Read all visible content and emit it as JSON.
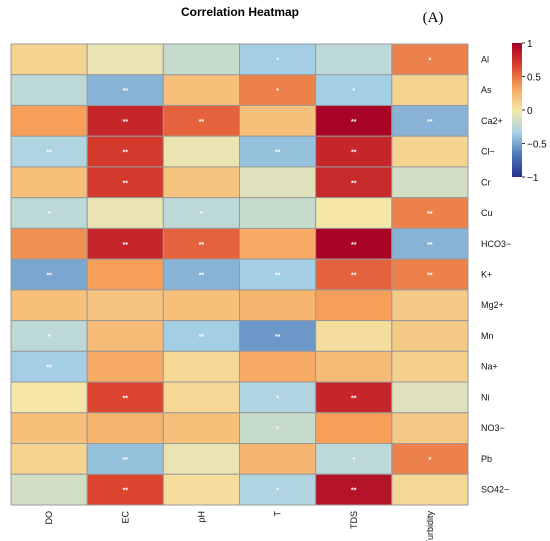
{
  "chart_data": {
    "type": "heatmap",
    "title": "Correlation Heatmap",
    "panel_label": "(A)",
    "columns": [
      "DO",
      "EC",
      "pH",
      "T",
      "TDS",
      "Turbidity"
    ],
    "rows": [
      "Al",
      "As",
      "Ca2+",
      "Cl−",
      "Cr",
      "Cu",
      "HCO3−",
      "K+",
      "Mg2+",
      "Mn",
      "Na+",
      "Ni",
      "NO3−",
      "Pb",
      "SO42−"
    ],
    "values": [
      [
        0.1,
        -0.05,
        -0.2,
        -0.35,
        -0.25,
        0.45
      ],
      [
        -0.25,
        -0.45,
        0.2,
        0.45,
        -0.35,
        0.1
      ],
      [
        0.35,
        0.8,
        0.55,
        0.2,
        0.98,
        -0.45
      ],
      [
        -0.3,
        0.7,
        -0.05,
        -0.4,
        0.8,
        0.1
      ],
      [
        0.2,
        0.7,
        0.18,
        -0.1,
        0.78,
        -0.15
      ],
      [
        -0.25,
        -0.05,
        -0.25,
        -0.2,
        0.0,
        0.45
      ],
      [
        0.4,
        0.8,
        0.55,
        0.3,
        0.98,
        -0.45
      ],
      [
        -0.5,
        0.35,
        -0.45,
        -0.35,
        0.55,
        0.45
      ],
      [
        0.2,
        0.18,
        0.2,
        0.25,
        0.35,
        0.15
      ],
      [
        -0.25,
        0.22,
        -0.35,
        -0.55,
        0.05,
        0.15
      ],
      [
        -0.35,
        0.3,
        0.08,
        0.3,
        0.22,
        0.12
      ],
      [
        0.0,
        0.65,
        0.08,
        -0.3,
        0.8,
        -0.1
      ],
      [
        0.2,
        0.25,
        0.2,
        -0.2,
        0.35,
        0.15
      ],
      [
        0.1,
        -0.4,
        -0.05,
        0.25,
        -0.25,
        0.45
      ],
      [
        -0.15,
        0.65,
        0.05,
        -0.3,
        0.9,
        0.08
      ]
    ],
    "significance": [
      [
        "",
        "",
        "",
        "*",
        "",
        "*"
      ],
      [
        "",
        "**",
        "",
        "*",
        "*",
        ""
      ],
      [
        "",
        "**",
        "**",
        "",
        "**",
        "**"
      ],
      [
        "**",
        "**",
        "",
        "**",
        "**",
        ""
      ],
      [
        "",
        "**",
        "",
        "",
        "**",
        ""
      ],
      [
        "*",
        "",
        "*",
        "",
        "",
        "**"
      ],
      [
        "",
        "**",
        "**",
        "",
        "**",
        "**"
      ],
      [
        "**",
        "",
        "**",
        "**",
        "**",
        "**"
      ],
      [
        "",
        "",
        "",
        "",
        "",
        ""
      ],
      [
        "*",
        "",
        "**",
        "**",
        "",
        ""
      ],
      [
        "**",
        "",
        "",
        "",
        "",
        ""
      ],
      [
        "",
        "**",
        "",
        "*",
        "**",
        ""
      ],
      [
        "",
        "",
        "",
        "*",
        "",
        ""
      ],
      [
        "",
        "**",
        "",
        "",
        "*",
        "*"
      ],
      [
        "",
        "**",
        "",
        "*",
        "**",
        ""
      ]
    ],
    "colorbar": {
      "range": [
        -1,
        1
      ],
      "ticks": [
        {
          "value": 1,
          "label": "1"
        },
        {
          "value": 0.5,
          "label": "0.5"
        },
        {
          "value": 0,
          "label": "0"
        },
        {
          "value": -0.5,
          "label": "−0.5"
        },
        {
          "value": -1,
          "label": "−1"
        }
      ],
      "stops": [
        "#2b2f8f",
        "#4a78b8",
        "#a9d3e6",
        "#f4e7a8",
        "#f7a45c",
        "#d9402d",
        "#a50026"
      ]
    }
  }
}
